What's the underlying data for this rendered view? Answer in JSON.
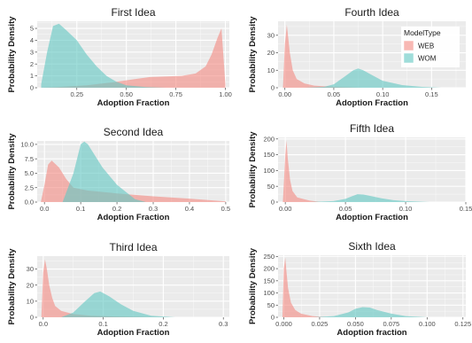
{
  "chart_data": [
    {
      "type": "area",
      "title": "First Idea",
      "xlabel": "Adoption Fraction",
      "ylabel": "Probability Density",
      "xlim": [
        0.05,
        1.02
      ],
      "ylim": [
        0,
        5.6
      ],
      "xticks": [
        0.25,
        0.5,
        0.75,
        1.0
      ],
      "xtick_labels": [
        "0.25",
        "0.50",
        "0.75",
        "1.00"
      ],
      "yticks": [
        0,
        1,
        2,
        3,
        4,
        5
      ],
      "ytick_labels": [
        "0",
        "1",
        "2",
        "3",
        "4",
        "5"
      ],
      "series": [
        {
          "name": "WEB",
          "x": [
            0.05,
            0.15,
            0.3,
            0.45,
            0.55,
            0.62,
            0.7,
            0.78,
            0.85,
            0.9,
            0.93,
            0.96,
            0.98,
            1.0
          ],
          "y": [
            0,
            0.05,
            0.2,
            0.5,
            0.75,
            0.9,
            0.95,
            1.0,
            1.2,
            1.8,
            2.8,
            4.2,
            5.0,
            0.3
          ]
        },
        {
          "name": "WOM",
          "x": [
            0.07,
            0.1,
            0.13,
            0.16,
            0.2,
            0.25,
            0.3,
            0.35,
            0.4,
            0.45,
            0.5,
            0.6,
            0.7
          ],
          "y": [
            0.3,
            3.0,
            5.2,
            5.4,
            4.8,
            4.0,
            2.8,
            1.8,
            1.0,
            0.5,
            0.2,
            0.05,
            0
          ]
        }
      ]
    },
    {
      "type": "area",
      "title": "Fourth Idea",
      "xlabel": "Adoption Fraction",
      "ylabel": "Probability Density",
      "xlim": [
        -0.007,
        0.185
      ],
      "ylim": [
        0,
        38
      ],
      "xticks": [
        0.0,
        0.05,
        0.1,
        0.15
      ],
      "xtick_labels": [
        "0.00",
        "0.05",
        "0.10",
        "0.15"
      ],
      "yticks": [
        0,
        10,
        20,
        30
      ],
      "ytick_labels": [
        "0",
        "10",
        "20",
        "30"
      ],
      "series": [
        {
          "name": "WEB",
          "x": [
            -0.002,
            0.0,
            0.002,
            0.005,
            0.008,
            0.012,
            0.02,
            0.03,
            0.05,
            0.08
          ],
          "y": [
            0,
            25,
            36,
            20,
            10,
            5,
            2.5,
            1.2,
            0.5,
            0
          ]
        },
        {
          "name": "WOM",
          "x": [
            0.02,
            0.04,
            0.05,
            0.06,
            0.07,
            0.075,
            0.08,
            0.09,
            0.1,
            0.12,
            0.14,
            0.16
          ],
          "y": [
            0,
            0.5,
            2,
            6,
            10,
            11,
            10,
            7,
            4,
            1.5,
            0.5,
            0
          ]
        }
      ],
      "legend": {
        "title": "ModelType",
        "entries": [
          "WEB",
          "WOM"
        ],
        "placement": "right"
      }
    },
    {
      "type": "area",
      "title": "Second Idea",
      "xlabel": "Adoption Fraction",
      "ylabel": "Probability Density",
      "xlim": [
        -0.02,
        0.51
      ],
      "ylim": [
        0,
        10.6
      ],
      "xticks": [
        0.0,
        0.1,
        0.2,
        0.3,
        0.4,
        0.5
      ],
      "xtick_labels": [
        "0.0",
        "0.1",
        "0.2",
        "0.3",
        "0.4",
        "0.5"
      ],
      "yticks": [
        0,
        2.5,
        5,
        7.5,
        10
      ],
      "ytick_labels": [
        "0.0",
        "2.5",
        "5.0",
        "7.5",
        "10.0"
      ],
      "series": [
        {
          "name": "WEB",
          "x": [
            -0.01,
            0.0,
            0.01,
            0.02,
            0.04,
            0.06,
            0.08,
            0.12,
            0.2,
            0.3,
            0.4,
            0.5
          ],
          "y": [
            0,
            3,
            6.5,
            7.2,
            6.0,
            4.0,
            2.5,
            2.0,
            1.5,
            1.0,
            0.6,
            0.1
          ]
        },
        {
          "name": "WOM",
          "x": [
            0.05,
            0.08,
            0.1,
            0.11,
            0.12,
            0.14,
            0.16,
            0.2,
            0.25,
            0.28
          ],
          "y": [
            0,
            5,
            10,
            10.5,
            10,
            8,
            6,
            3,
            0.5,
            0
          ]
        }
      ]
    },
    {
      "type": "area",
      "title": "Fifth Idea",
      "xlabel": "Adoption Fraction",
      "ylabel": "Probability Density",
      "xlim": [
        -0.006,
        0.15
      ],
      "ylim": [
        0,
        205
      ],
      "xticks": [
        0.0,
        0.05,
        0.1,
        0.15
      ],
      "xtick_labels": [
        "0.00",
        "0.05",
        "0.10",
        "0.15"
      ],
      "yticks": [
        0,
        50,
        100,
        150,
        200
      ],
      "ytick_labels": [
        "0",
        "50",
        "100",
        "150",
        "200"
      ],
      "series": [
        {
          "name": "WEB",
          "x": [
            -0.002,
            0.0,
            0.001,
            0.002,
            0.004,
            0.006,
            0.01,
            0.02,
            0.03
          ],
          "y": [
            0,
            150,
            195,
            140,
            70,
            35,
            15,
            5,
            0
          ]
        },
        {
          "name": "WOM",
          "x": [
            0.02,
            0.04,
            0.05,
            0.055,
            0.06,
            0.065,
            0.07,
            0.08,
            0.09,
            0.1,
            0.12
          ],
          "y": [
            0,
            3,
            10,
            18,
            25,
            24,
            20,
            12,
            6,
            3,
            0
          ]
        }
      ]
    },
    {
      "type": "area",
      "title": "Third Idea",
      "xlabel": "Adoption Fraction",
      "ylabel": "Probability Density",
      "xlim": [
        -0.01,
        0.31
      ],
      "ylim": [
        0,
        38
      ],
      "xticks": [
        0.0,
        0.1,
        0.2,
        0.3
      ],
      "xtick_labels": [
        "0.0",
        "0.1",
        "0.2",
        "0.3"
      ],
      "yticks": [
        0,
        10,
        20,
        30
      ],
      "ytick_labels": [
        "0",
        "10",
        "20",
        "30"
      ],
      "series": [
        {
          "name": "WEB",
          "x": [
            -0.003,
            0.0,
            0.003,
            0.006,
            0.01,
            0.015,
            0.02,
            0.03,
            0.05,
            0.08,
            0.12,
            0.2
          ],
          "y": [
            0,
            28,
            36,
            30,
            20,
            12,
            7,
            4,
            2,
            1,
            0.5,
            0
          ]
        },
        {
          "name": "WOM",
          "x": [
            0.03,
            0.05,
            0.07,
            0.085,
            0.095,
            0.11,
            0.13,
            0.15,
            0.18,
            0.22
          ],
          "y": [
            0,
            3,
            10,
            15,
            16,
            13,
            8,
            4,
            1,
            0
          ]
        }
      ]
    },
    {
      "type": "area",
      "title": "Sixth Idea",
      "xlabel": "Adoption fraction",
      "ylabel": "Probability Density",
      "xlim": [
        -0.004,
        0.127
      ],
      "ylim": [
        0,
        255
      ],
      "xticks": [
        0.0,
        0.025,
        0.05,
        0.075,
        0.1,
        0.125
      ],
      "xtick_labels": [
        "0.000",
        "0.025",
        "0.050",
        "0.075",
        "0.100",
        "0.125"
      ],
      "yticks": [
        0,
        50,
        100,
        150,
        200,
        250
      ],
      "ytick_labels": [
        "0",
        "50",
        "100",
        "150",
        "200",
        "250"
      ],
      "series": [
        {
          "name": "WEB",
          "x": [
            -0.001,
            0.0,
            0.001,
            0.002,
            0.003,
            0.005,
            0.008,
            0.012,
            0.02,
            0.03
          ],
          "y": [
            0,
            200,
            245,
            180,
            120,
            60,
            30,
            15,
            5,
            0
          ]
        },
        {
          "name": "WOM",
          "x": [
            0.02,
            0.035,
            0.045,
            0.05,
            0.055,
            0.06,
            0.065,
            0.075,
            0.085,
            0.1
          ],
          "y": [
            0,
            5,
            20,
            35,
            42,
            40,
            30,
            15,
            5,
            0
          ]
        }
      ]
    }
  ],
  "colors": {
    "WEB": "#f4a6a1",
    "WOM": "#7fd3d0",
    "panel_bg": "#ebebeb",
    "grid": "#ffffff"
  }
}
